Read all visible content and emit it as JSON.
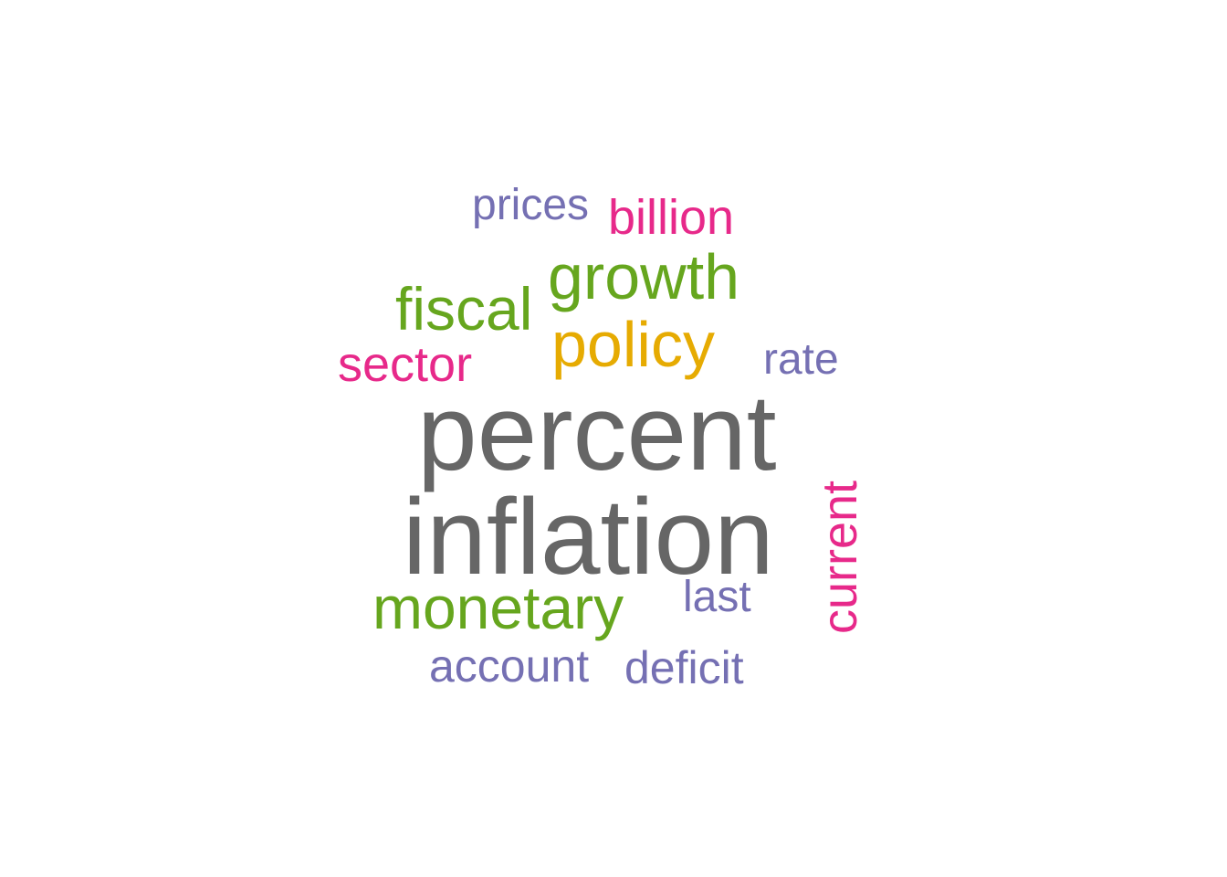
{
  "words": [
    {
      "text": "percent",
      "color": "#666666",
      "rotated": false
    },
    {
      "text": "inflation",
      "color": "#666666",
      "rotated": false
    },
    {
      "text": "policy",
      "color": "#E6AB02",
      "rotated": false
    },
    {
      "text": "growth",
      "color": "#66A61E",
      "rotated": false
    },
    {
      "text": "fiscal",
      "color": "#66A61E",
      "rotated": false
    },
    {
      "text": "monetary",
      "color": "#66A61E",
      "rotated": false
    },
    {
      "text": "sector",
      "color": "#E7298A",
      "rotated": false
    },
    {
      "text": "billion",
      "color": "#E7298A",
      "rotated": false
    },
    {
      "text": "current",
      "color": "#E7298A",
      "rotated": true
    },
    {
      "text": "prices",
      "color": "#7570B3",
      "rotated": false
    },
    {
      "text": "rate",
      "color": "#7570B3",
      "rotated": false
    },
    {
      "text": "last",
      "color": "#7570B3",
      "rotated": false
    },
    {
      "text": "account",
      "color": "#7570B3",
      "rotated": false
    },
    {
      "text": "deficit",
      "color": "#7570B3",
      "rotated": false
    }
  ]
}
